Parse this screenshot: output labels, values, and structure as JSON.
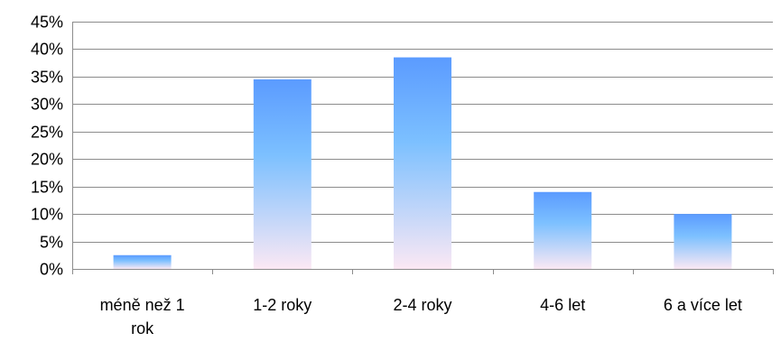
{
  "chart_data": {
    "type": "bar",
    "categories": [
      [
        "méně než 1",
        "rok"
      ],
      [
        "1-2 roky"
      ],
      [
        "2-4 roky"
      ],
      [
        "4-6 let"
      ],
      [
        "6 a více let"
      ]
    ],
    "values": [
      2.5,
      34.5,
      38.5,
      14,
      10
    ],
    "ylim": [
      0,
      45
    ],
    "yticks": [
      0,
      5,
      10,
      15,
      20,
      25,
      30,
      35,
      40,
      45
    ],
    "ytick_labels": [
      "0%",
      "5%",
      "10%",
      "15%",
      "20%",
      "25%",
      "30%",
      "35%",
      "40%",
      "45%"
    ],
    "grid": true,
    "legend": "none",
    "title": "",
    "xlabel": "",
    "ylabel": "",
    "colors": {
      "bar_top": "#5b9bff",
      "bar_mid": "#7cc0ff",
      "bar_bottom": "#fbe8f4",
      "grid": "#8c8c8c",
      "axis": "#8c8c8c"
    }
  }
}
